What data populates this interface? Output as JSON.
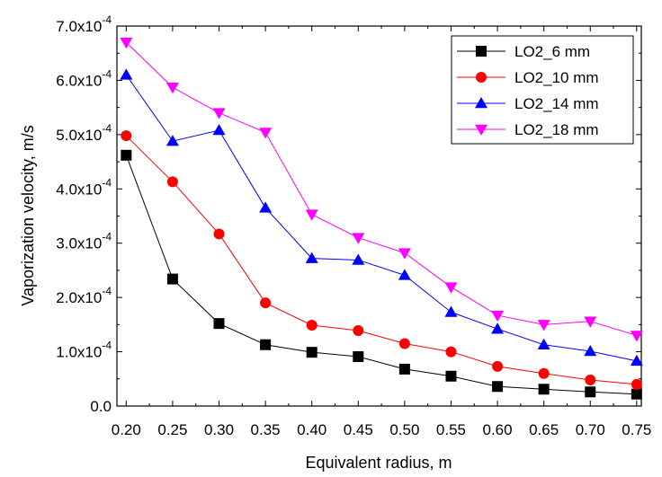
{
  "chart_data": {
    "type": "line",
    "title": "",
    "xlabel": "Equivalent radius, m",
    "ylabel": "Vaporization velocity, m/s",
    "x": [
      0.2,
      0.25,
      0.3,
      0.35,
      0.4,
      0.45,
      0.5,
      0.55,
      0.6,
      0.65,
      0.7,
      0.75
    ],
    "xlim": [
      0.19,
      0.755
    ],
    "ylim": [
      0,
      0.0007
    ],
    "x_ticks": [
      0.2,
      0.25,
      0.3,
      0.35,
      0.4,
      0.45,
      0.5,
      0.55,
      0.6,
      0.65,
      0.7,
      0.75
    ],
    "x_tick_labels": [
      "0.20",
      "0.25",
      "0.30",
      "0.35",
      "0.40",
      "0.45",
      "0.50",
      "0.55",
      "0.60",
      "0.65",
      "0.70",
      "0.75"
    ],
    "y_ticks": [
      0,
      0.0001,
      0.0002,
      0.0003,
      0.0004,
      0.0005,
      0.0006,
      0.0007
    ],
    "y_tick_labels": [
      {
        "mantissa": "0.0",
        "power": ""
      },
      {
        "mantissa": "1.0x10",
        "power": "-4"
      },
      {
        "mantissa": "2.0x10",
        "power": "-4"
      },
      {
        "mantissa": "3.0x10",
        "power": "-4"
      },
      {
        "mantissa": "4.0x10",
        "power": "-4"
      },
      {
        "mantissa": "5.0x10",
        "power": "-4"
      },
      {
        "mantissa": "6.0x10",
        "power": "-4"
      },
      {
        "mantissa": "7.0x10",
        "power": "-4"
      }
    ],
    "grid": false,
    "legend_position": "top-right",
    "series": [
      {
        "name": "LO2_6 mm",
        "color": "#000000",
        "marker": "square",
        "values": [
          0.000462,
          0.000234,
          0.000152,
          0.000113,
          9.9e-05,
          9.1e-05,
          6.8e-05,
          5.5e-05,
          3.6e-05,
          3.1e-05,
          2.6e-05,
          2.2e-05
        ]
      },
      {
        "name": "LO2_10 mm",
        "color": "#ff0000",
        "marker": "circle",
        "values": [
          0.000498,
          0.000413,
          0.000317,
          0.00019,
          0.000149,
          0.000139,
          0.000115,
          0.0001,
          7.3e-05,
          6e-05,
          4.8e-05,
          4e-05
        ]
      },
      {
        "name": "LO2_14 mm",
        "color": "#0000ff",
        "marker": "triangle-up",
        "values": [
          0.00061,
          0.000488,
          0.000508,
          0.000365,
          0.000272,
          0.000269,
          0.000241,
          0.000173,
          0.000142,
          0.000113,
          0.000101,
          8.3e-05
        ]
      },
      {
        "name": "LO2_18 mm",
        "color": "#ff00ff",
        "marker": "triangle-down",
        "values": [
          0.00067,
          0.000587,
          0.00054,
          0.000504,
          0.000353,
          0.00031,
          0.000282,
          0.000219,
          0.000167,
          0.00015,
          0.000156,
          0.00013
        ]
      }
    ]
  }
}
